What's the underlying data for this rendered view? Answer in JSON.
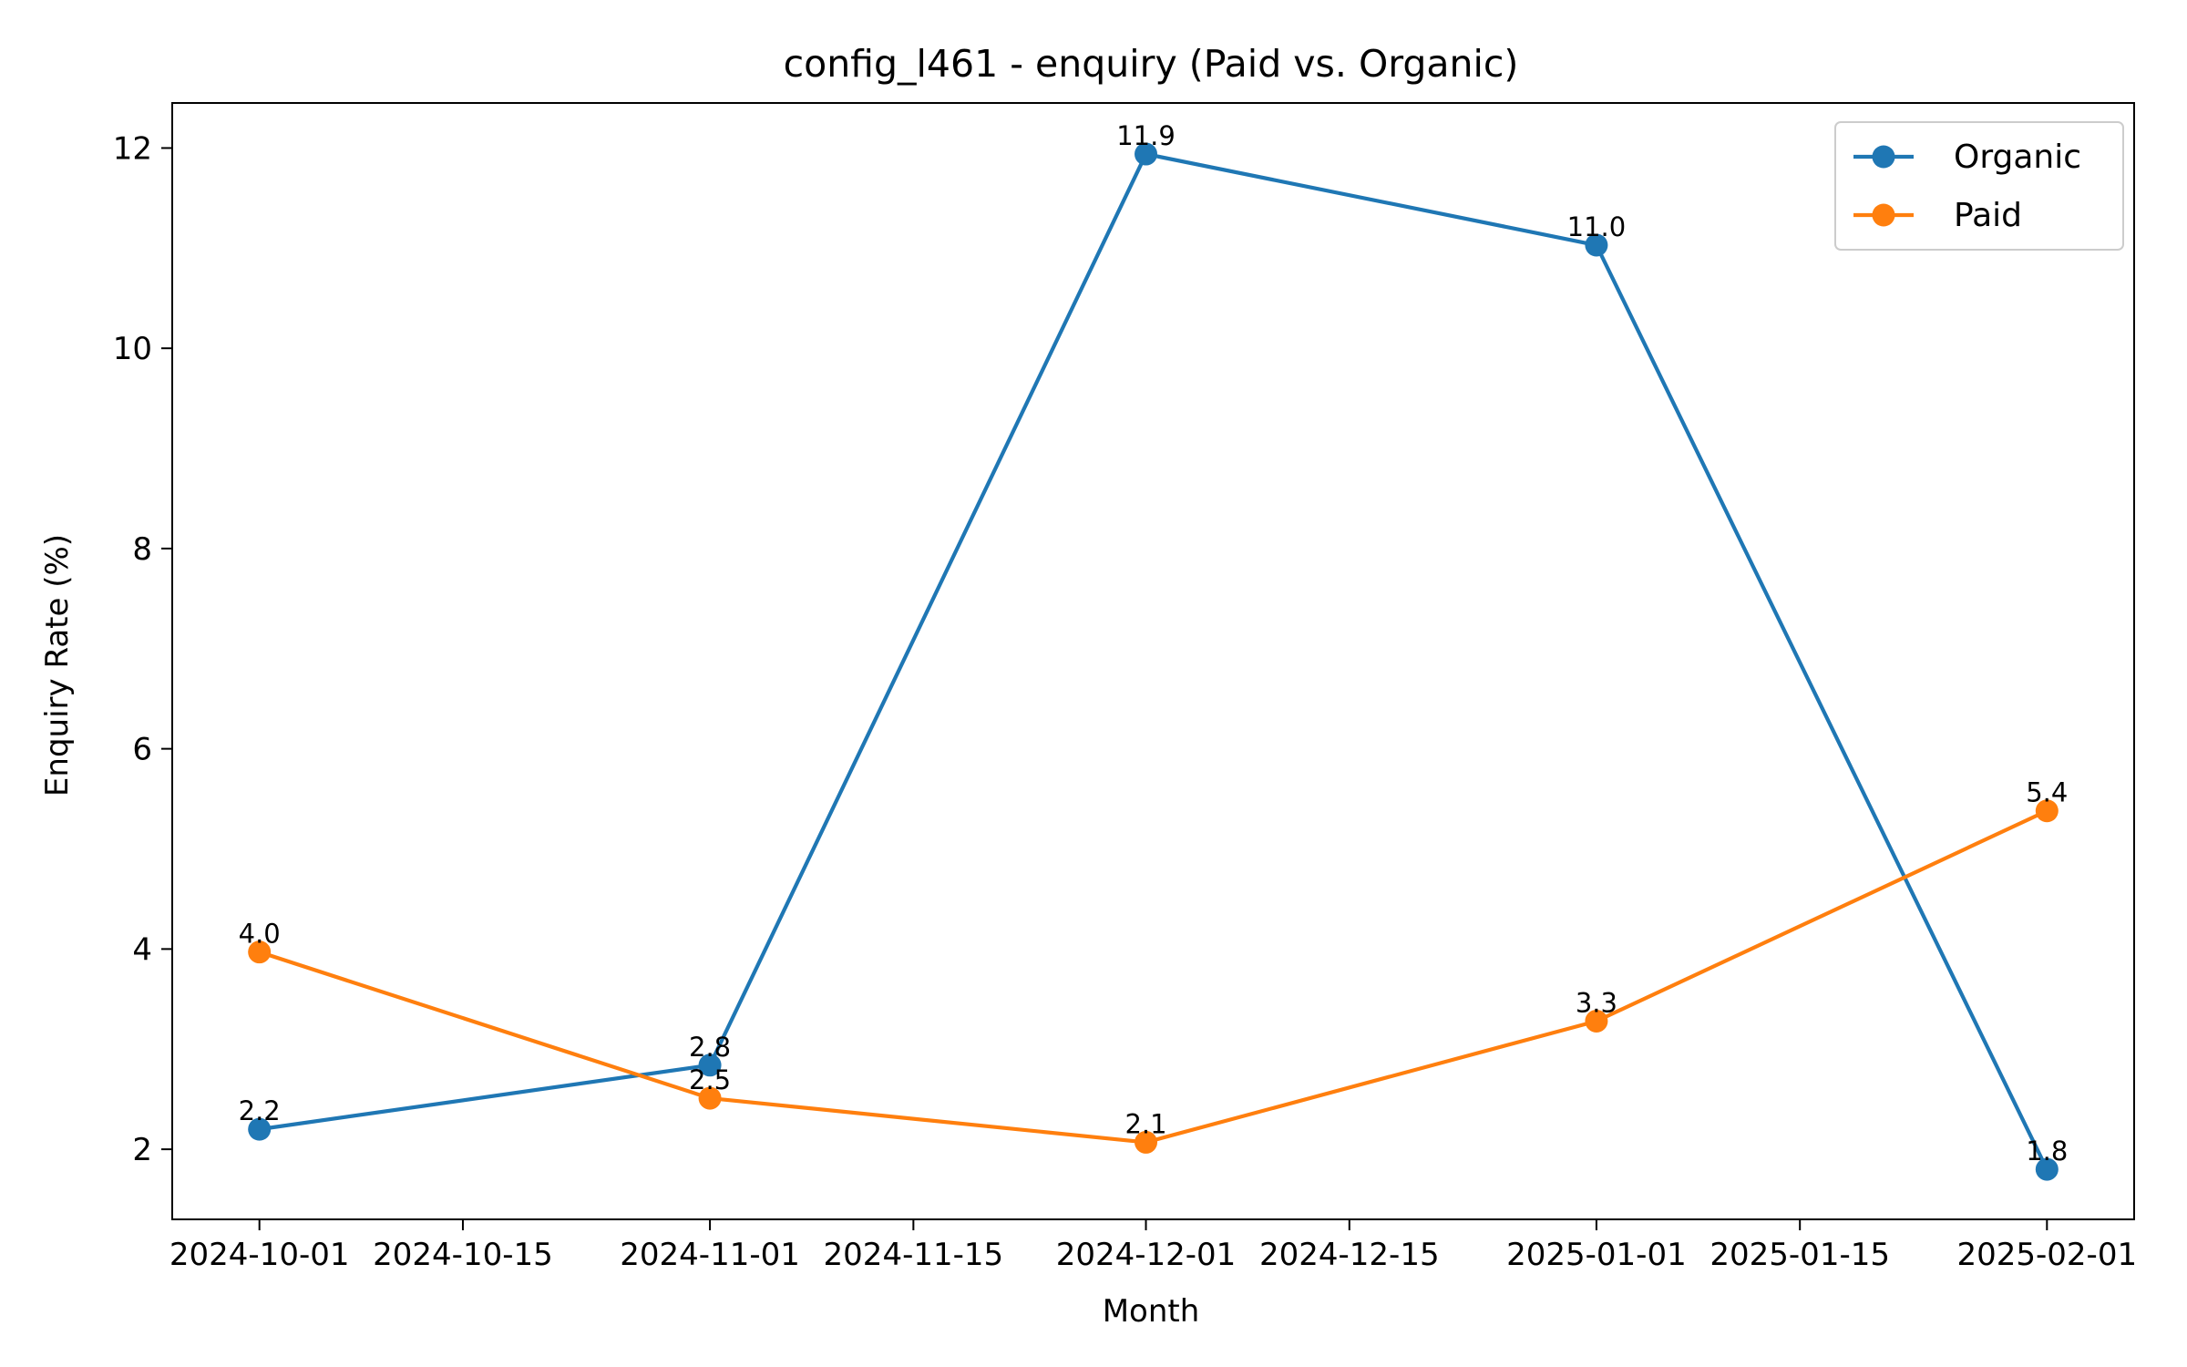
{
  "chart_data": {
    "type": "line",
    "title": "config_l461 - enquiry (Paid vs. Organic)",
    "xlabel": "Month",
    "ylabel": "Enquiry Rate (%)",
    "x_tick_labels": [
      "2024-10-01",
      "2024-10-15",
      "2024-11-01",
      "2024-11-15",
      "2024-12-01",
      "2024-12-15",
      "2025-01-01",
      "2025-01-15",
      "2025-02-01"
    ],
    "y_tick_labels": [
      "2",
      "4",
      "6",
      "8",
      "10",
      "12"
    ],
    "x": [
      "2024-10-01",
      "2024-11-01",
      "2024-12-01",
      "2025-01-01",
      "2025-02-01"
    ],
    "series": [
      {
        "name": "Organic",
        "color": "#1f77b4",
        "values": [
          2.2,
          2.84,
          11.94,
          11.03,
          1.8
        ],
        "labels": [
          "2.2",
          "2.8",
          "11.9",
          "11.0",
          "1.8"
        ]
      },
      {
        "name": "Paid",
        "color": "#ff7f0e",
        "values": [
          3.97,
          2.51,
          2.07,
          3.28,
          5.38
        ],
        "labels": [
          "4.0",
          "2.5",
          "2.1",
          "3.3",
          "5.4"
        ]
      }
    ],
    "ylim": [
      1.3,
      12.45
    ],
    "xlim": [
      "2024-09-25",
      "2025-02-07"
    ],
    "grid": false,
    "legend": "top-right"
  }
}
